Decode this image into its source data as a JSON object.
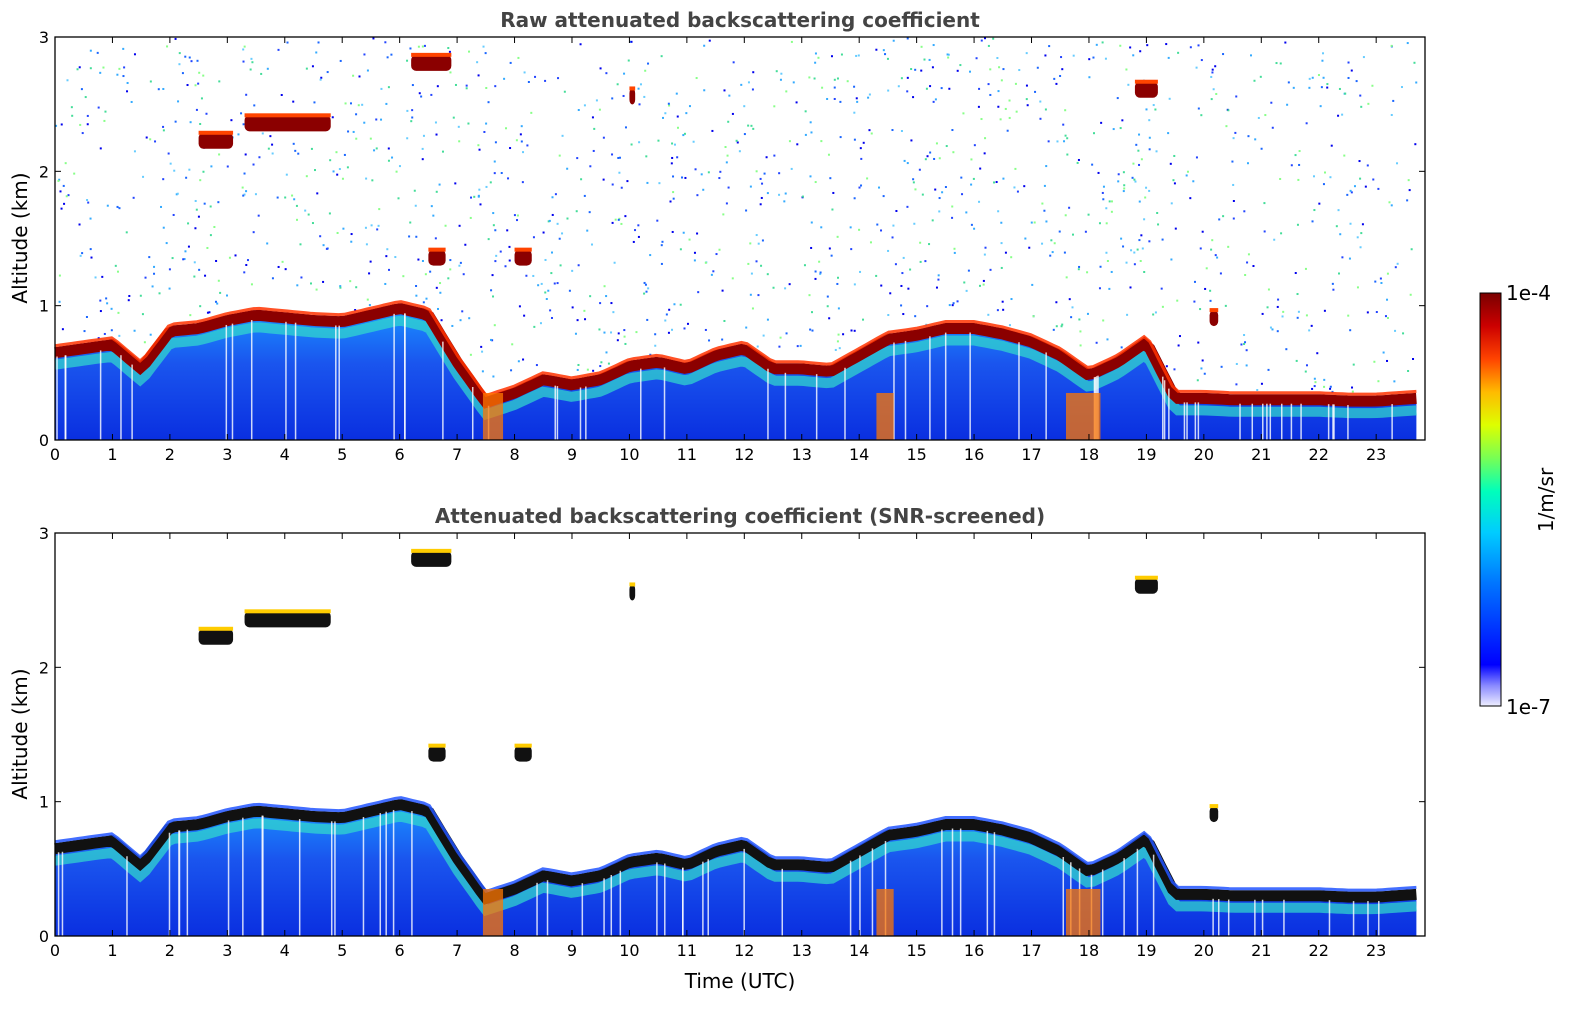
{
  "chart_data": [
    {
      "type": "heatmap",
      "title": "Raw attenuated backscattering coefficient",
      "xlabel": "",
      "ylabel": "Altitude (km)",
      "xlim": [
        0,
        23.85
      ],
      "ylim": [
        0,
        3
      ],
      "xticks": [
        "0",
        "1",
        "2",
        "3",
        "4",
        "5",
        "6",
        "7",
        "8",
        "9",
        "10",
        "11",
        "12",
        "13",
        "14",
        "15",
        "16",
        "17",
        "18",
        "19",
        "20",
        "21",
        "22",
        "23"
      ],
      "yticks": [
        "0",
        "1",
        "2",
        "3"
      ],
      "cloud_base_km": [
        [
          0,
          0.62
        ],
        [
          0.5,
          0.65
        ],
        [
          1,
          0.68
        ],
        [
          1.5,
          0.5
        ],
        [
          2,
          0.78
        ],
        [
          2.5,
          0.8
        ],
        [
          3,
          0.86
        ],
        [
          3.5,
          0.9
        ],
        [
          4,
          0.88
        ],
        [
          4.5,
          0.86
        ],
        [
          5,
          0.85
        ],
        [
          5.5,
          0.9
        ],
        [
          6,
          0.95
        ],
        [
          6.5,
          0.9
        ],
        [
          7,
          0.55
        ],
        [
          7.5,
          0.25
        ],
        [
          8,
          0.32
        ],
        [
          8.5,
          0.42
        ],
        [
          9,
          0.38
        ],
        [
          9.5,
          0.42
        ],
        [
          10,
          0.52
        ],
        [
          10.5,
          0.55
        ],
        [
          11,
          0.5
        ],
        [
          11.5,
          0.6
        ],
        [
          12,
          0.65
        ],
        [
          12.5,
          0.5
        ],
        [
          13,
          0.5
        ],
        [
          13.5,
          0.48
        ],
        [
          14,
          0.6
        ],
        [
          14.5,
          0.72
        ],
        [
          15,
          0.75
        ],
        [
          15.5,
          0.8
        ],
        [
          16,
          0.8
        ],
        [
          16.5,
          0.76
        ],
        [
          17,
          0.7
        ],
        [
          17.5,
          0.6
        ],
        [
          18,
          0.45
        ],
        [
          18.5,
          0.55
        ],
        [
          19,
          0.7
        ],
        [
          19.5,
          0.28
        ],
        [
          20,
          0.28
        ],
        [
          20.5,
          0.27
        ],
        [
          21,
          0.27
        ],
        [
          21.5,
          0.27
        ],
        [
          22,
          0.27
        ],
        [
          22.5,
          0.26
        ],
        [
          23,
          0.26
        ],
        [
          23.7,
          0.28
        ]
      ],
      "elevated_layers_km": [
        {
          "t0": 2.5,
          "t1": 3.1,
          "alt": 2.22
        },
        {
          "t0": 3.3,
          "t1": 4.8,
          "alt": 2.35
        },
        {
          "t0": 6.2,
          "t1": 6.9,
          "alt": 2.8
        },
        {
          "t0": 6.5,
          "t1": 6.8,
          "alt": 1.35
        },
        {
          "t0": 8.0,
          "t1": 8.3,
          "alt": 1.35
        },
        {
          "t0": 10.0,
          "t1": 10.1,
          "alt": 2.55
        },
        {
          "t0": 18.8,
          "t1": 19.2,
          "alt": 2.6
        },
        {
          "t0": 20.1,
          "t1": 20.25,
          "alt": 0.9
        }
      ]
    },
    {
      "type": "heatmap",
      "title": "Attenuated backscattering coefficient (SNR-screened)",
      "xlabel": "Time (UTC)",
      "ylabel": "Altitude (km)",
      "xlim": [
        0,
        23.85
      ],
      "ylim": [
        0,
        3
      ],
      "xticks": [
        "0",
        "1",
        "2",
        "3",
        "4",
        "5",
        "6",
        "7",
        "8",
        "9",
        "10",
        "11",
        "12",
        "13",
        "14",
        "15",
        "16",
        "17",
        "18",
        "19",
        "20",
        "21",
        "22",
        "23"
      ],
      "yticks": [
        "0",
        "1",
        "2",
        "3"
      ]
    }
  ],
  "colorbar": {
    "label": "1/m/sr",
    "max_label": "1e-4",
    "min_label": "1e-7",
    "colors": [
      "#e8e8f8",
      "#7070ff",
      "#0000ff",
      "#0066ff",
      "#00bbff",
      "#00ffcc",
      "#66ff66",
      "#ccff00",
      "#ffdd00",
      "#ff6600",
      "#ff0000",
      "#aa0000",
      "#7a0000"
    ]
  }
}
